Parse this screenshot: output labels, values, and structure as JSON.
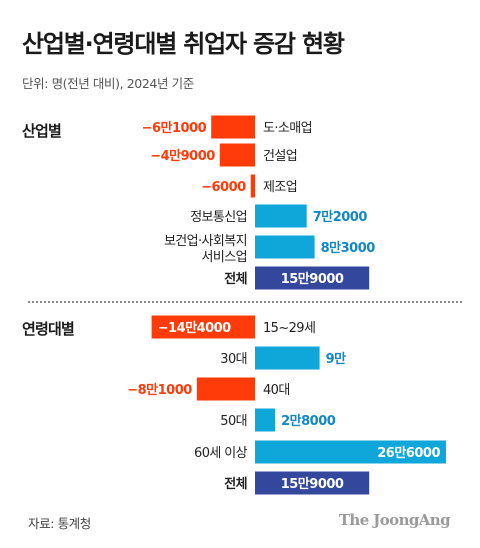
{
  "title": "산업별·연령대별 취업자 증감 현황",
  "unit_note": "단위: 명(전년 대비), 2024년 기준",
  "source": "자료: 통계청",
  "brand": "The JoongAng",
  "colors": {
    "negative": "#ff3b0a",
    "positive": "#0fa7d9",
    "total": "#33479c",
    "positive_label": "#1488c4",
    "negative_label": "#ff3b0a"
  },
  "chart_data": [
    {
      "type": "bar",
      "orientation": "horizontal",
      "section_label": "산업별",
      "categories": [
        "도·소매업",
        "건설업",
        "제조업",
        "정보통신업",
        "보건업·사회복지\n서비스업",
        "전체"
      ],
      "values": [
        -61000,
        -49000,
        -6000,
        72000,
        83000,
        159000
      ],
      "value_labels": [
        "−6만1000",
        "−4만9000",
        "−6000",
        "7만2000",
        "8만3000",
        "15만9000"
      ],
      "total_index": 5
    },
    {
      "type": "bar",
      "orientation": "horizontal",
      "section_label": "연령대별",
      "categories": [
        "15~29세",
        "30대",
        "40대",
        "50대",
        "60세 이상",
        "전체"
      ],
      "values": [
        -144000,
        90000,
        -81000,
        28000,
        266000,
        159000
      ],
      "value_labels": [
        "−14만4000",
        "9만",
        "−8만1000",
        "2만8000",
        "26만6000",
        "15만9000"
      ],
      "total_index": 5
    }
  ]
}
